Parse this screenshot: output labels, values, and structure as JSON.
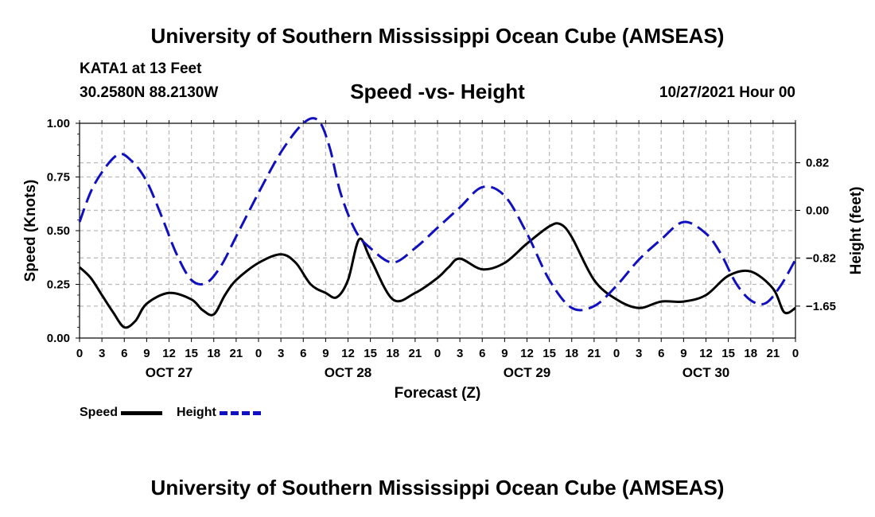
{
  "header": {
    "title": "University of Southern Mississippi Ocean Cube (AMSEAS)",
    "station": "KATA1 at 13 Feet",
    "coordinates": "30.2580N  88.2130W",
    "subtitle": "Speed -vs- Height",
    "run_time": "10/27/2021 Hour 00"
  },
  "footer": {
    "title": "University of Southern Mississippi Ocean Cube (AMSEAS)"
  },
  "legend": {
    "speed_label": "Speed",
    "height_label": "Height"
  },
  "chart_data": {
    "type": "line",
    "title": "Speed -vs- Height",
    "xlabel": "Forecast (Z)",
    "ylabel": "Speed (Knots)",
    "ylabel_right": "Height (feet)",
    "xlim": [
      0,
      96
    ],
    "ylim": [
      0,
      1.0
    ],
    "ylim_right": [
      -2.2,
      1.5
    ],
    "grid": true,
    "x_tick_step_hours": 3,
    "x_tick_labels": [
      "0",
      "3",
      "6",
      "9",
      "12",
      "15",
      "18",
      "21",
      "0",
      "3",
      "6",
      "9",
      "12",
      "15",
      "18",
      "21",
      "0",
      "3",
      "6",
      "9",
      "12",
      "15",
      "18",
      "21",
      "0",
      "3",
      "6",
      "9",
      "12",
      "15",
      "18",
      "21",
      "0"
    ],
    "day_labels": [
      {
        "hour": 12,
        "label": "OCT 27"
      },
      {
        "hour": 36,
        "label": "OCT 28"
      },
      {
        "hour": 60,
        "label": "OCT 29"
      },
      {
        "hour": 84,
        "label": "OCT 30"
      }
    ],
    "y_ticks_left": [
      {
        "value": 0.0,
        "label": "0.00"
      },
      {
        "value": 0.25,
        "label": "0.25"
      },
      {
        "value": 0.5,
        "label": "0.50"
      },
      {
        "value": 0.75,
        "label": "0.75"
      },
      {
        "value": 1.0,
        "label": "1.00"
      }
    ],
    "y_ticks_right": [
      {
        "value": 0.82,
        "label": "0.82"
      },
      {
        "value": 0.0,
        "label": "0.00"
      },
      {
        "value": -0.82,
        "label": "−0.82"
      },
      {
        "value": -1.65,
        "label": "−1.65"
      }
    ],
    "series": [
      {
        "name": "Speed",
        "axis": "left",
        "color": "#000000",
        "style": "solid",
        "x": [
          0,
          1.5,
          3,
          4.5,
          6,
          7.5,
          9,
          12,
          15,
          16.5,
          18,
          19.5,
          21,
          24,
          27,
          29,
          31,
          33,
          34.5,
          36,
          37.5,
          39,
          42,
          45,
          48,
          49.5,
          51,
          54,
          57,
          60,
          63,
          64.5,
          66,
          69,
          72,
          75,
          78,
          81,
          84,
          87,
          90,
          93,
          94.5,
          96
        ],
        "y": [
          0.33,
          0.28,
          0.2,
          0.12,
          0.05,
          0.08,
          0.16,
          0.21,
          0.18,
          0.13,
          0.11,
          0.2,
          0.27,
          0.35,
          0.39,
          0.35,
          0.25,
          0.21,
          0.19,
          0.27,
          0.46,
          0.37,
          0.18,
          0.21,
          0.28,
          0.33,
          0.37,
          0.32,
          0.35,
          0.44,
          0.52,
          0.53,
          0.47,
          0.27,
          0.18,
          0.14,
          0.17,
          0.17,
          0.2,
          0.29,
          0.31,
          0.23,
          0.12,
          0.14
        ]
      },
      {
        "name": "Height",
        "axis": "right",
        "color": "#1010c0",
        "style": "dashed",
        "x": [
          0,
          2,
          5,
          7,
          9,
          11,
          13,
          15,
          17,
          19,
          21,
          24,
          27,
          30,
          32,
          33.5,
          35,
          37,
          39,
          42,
          45,
          48,
          51,
          54,
          57,
          60,
          63,
          66,
          69,
          72,
          75,
          78,
          81,
          84,
          86,
          88,
          90,
          92,
          94,
          96
        ],
        "y": [
          -0.2,
          0.45,
          0.95,
          0.85,
          0.5,
          -0.1,
          -0.75,
          -1.2,
          -1.25,
          -0.95,
          -0.45,
          0.3,
          1.0,
          1.5,
          1.55,
          1.1,
          0.3,
          -0.35,
          -0.65,
          -0.9,
          -0.65,
          -0.3,
          0.05,
          0.4,
          0.25,
          -0.4,
          -1.2,
          -1.68,
          -1.65,
          -1.3,
          -0.85,
          -0.5,
          -0.2,
          -0.4,
          -0.75,
          -1.25,
          -1.55,
          -1.6,
          -1.3,
          -0.85
        ]
      }
    ]
  }
}
